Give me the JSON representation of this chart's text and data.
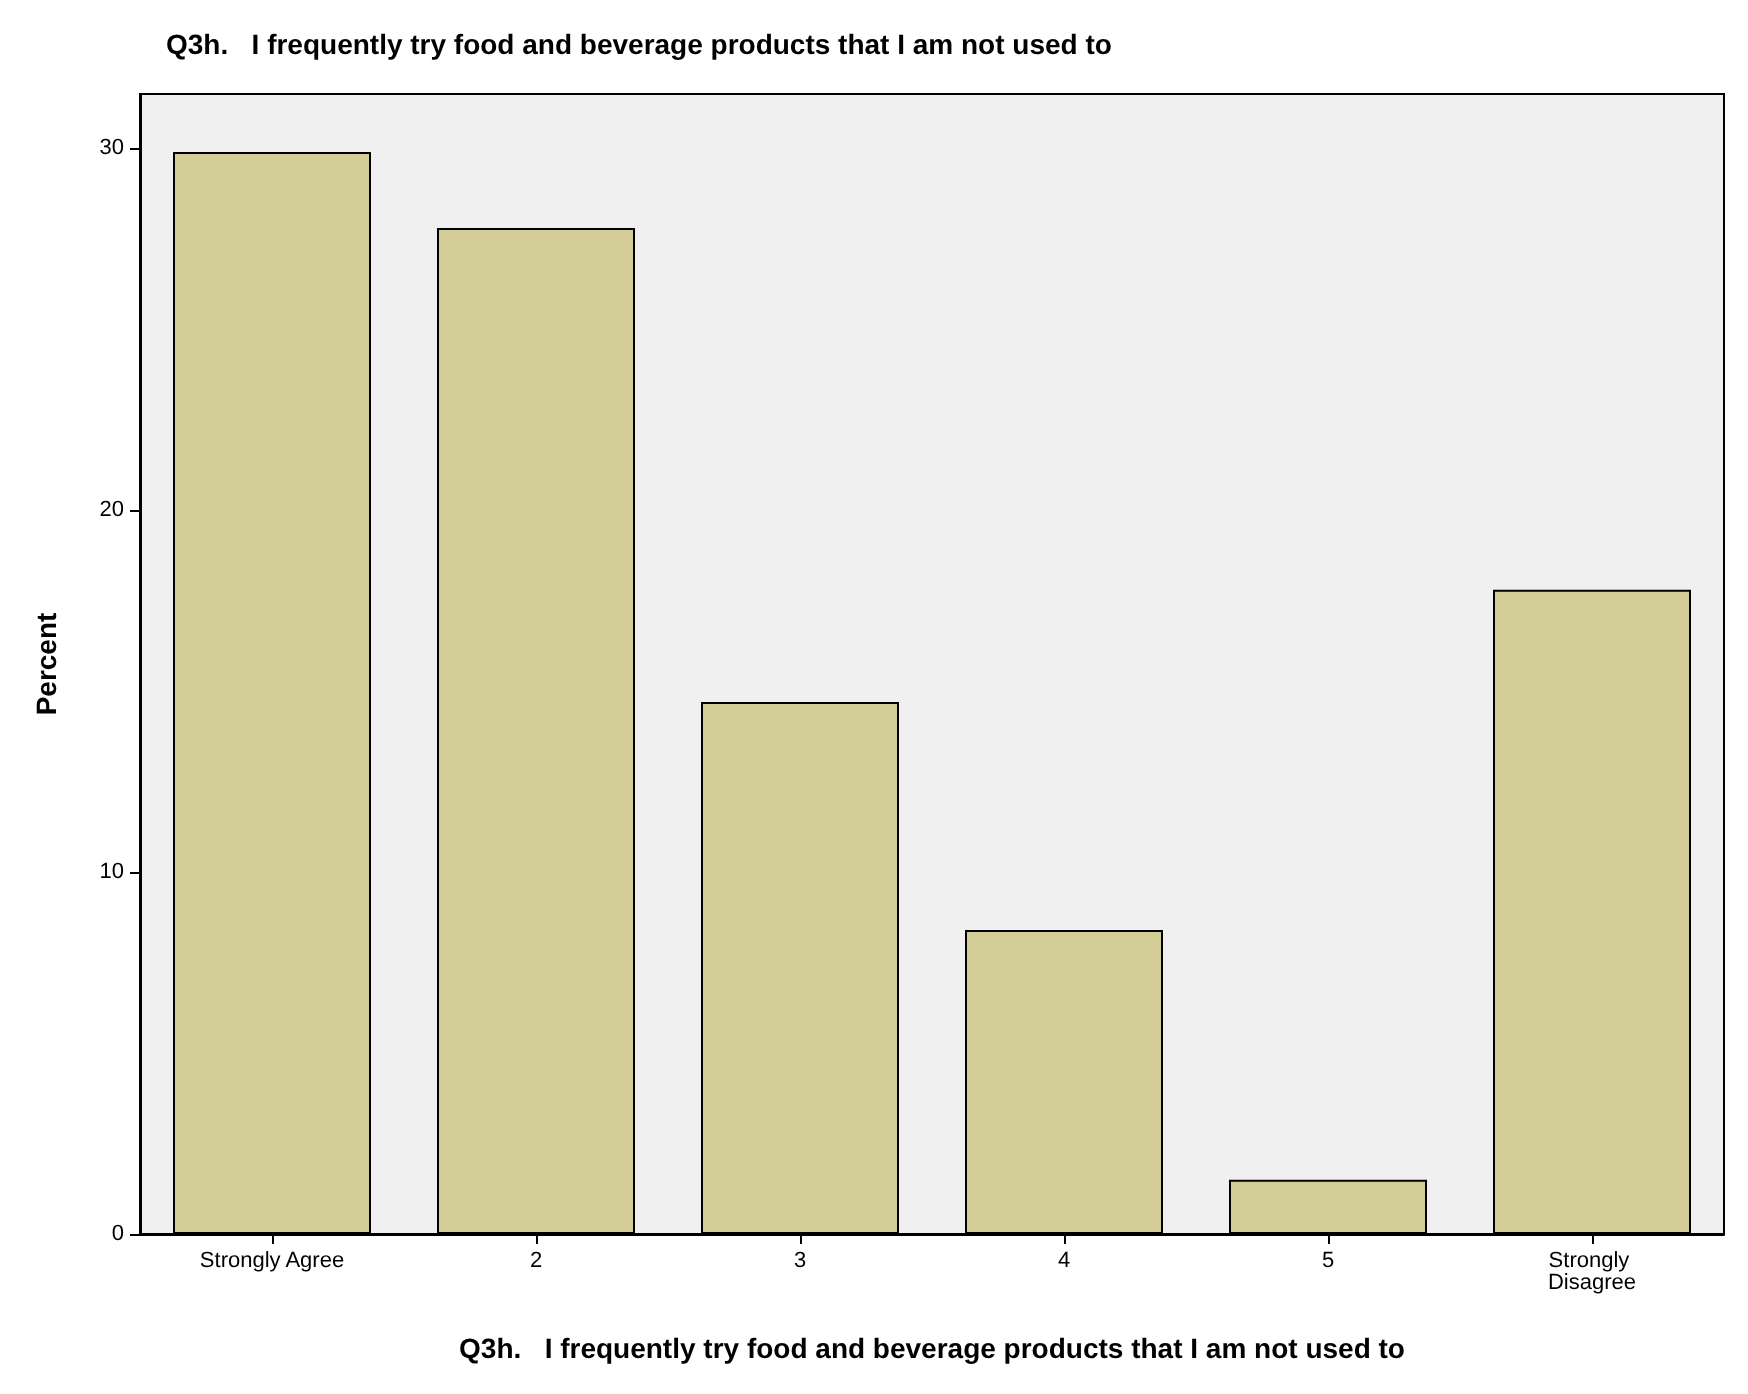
{
  "chart_data": {
    "type": "bar",
    "title": "Q3h.   I frequently try food and beverage products that I am not used to",
    "xlabel": "Q3h.   I frequently try food and beverage products that I am not used to",
    "ylabel": "Percent",
    "categories": [
      "Strongly Agree",
      "2",
      "3",
      "4",
      "5",
      "Strongly Disagree"
    ],
    "values": [
      29.9,
      27.8,
      14.7,
      8.4,
      1.5,
      17.8
    ],
    "color": "#d3ce97",
    "ylim": [
      0,
      31.5
    ],
    "yticks": [
      0,
      10,
      20,
      30
    ],
    "grid": false
  }
}
